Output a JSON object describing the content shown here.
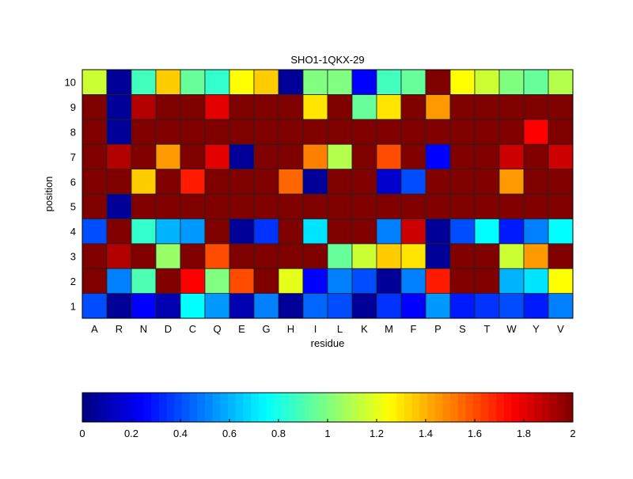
{
  "chart_data": {
    "type": "heatmap",
    "title": "SHO1-1QKX-29",
    "xlabel": "residue",
    "ylabel": "position",
    "x_categories": [
      "A",
      "R",
      "N",
      "D",
      "C",
      "Q",
      "E",
      "G",
      "H",
      "I",
      "L",
      "K",
      "M",
      "F",
      "P",
      "S",
      "T",
      "W",
      "Y",
      "V"
    ],
    "y_categories": [
      "1",
      "2",
      "3",
      "4",
      "5",
      "6",
      "7",
      "8",
      "9",
      "10"
    ],
    "colormap": "jet",
    "clim": [
      0,
      2
    ],
    "colorbar": {
      "placement": "bottom",
      "ticks": [
        "0",
        "0.2",
        "0.4",
        "0.6",
        "0.8",
        "1",
        "1.2",
        "1.4",
        "1.6",
        "1.8",
        "2"
      ]
    },
    "values_by_position": {
      "10": [
        1.15,
        0.05,
        0.88,
        1.35,
        0.95,
        0.85,
        1.25,
        1.35,
        0.05,
        1.0,
        1.0,
        0.25,
        0.88,
        0.95,
        2.0,
        1.25,
        1.15,
        1.0,
        0.95,
        1.1
      ],
      "9": [
        2,
        0.05,
        1.9,
        2,
        2,
        1.8,
        2,
        2,
        2,
        1.3,
        2,
        0.95,
        1.3,
        2,
        1.45,
        2,
        2,
        2,
        2,
        2
      ],
      "8": [
        2,
        0.05,
        2,
        2,
        2,
        2,
        2,
        2,
        2,
        2,
        2,
        2,
        2,
        2,
        2,
        2,
        2,
        2,
        1.75,
        2
      ],
      "7": [
        2,
        1.9,
        2,
        1.45,
        2,
        1.8,
        0.05,
        2,
        2,
        1.5,
        1.1,
        2,
        1.6,
        2,
        0.25,
        2,
        2,
        1.85,
        2,
        1.85
      ],
      "6": [
        2,
        2,
        1.35,
        2,
        1.7,
        2,
        2,
        2,
        1.55,
        0.05,
        2,
        2,
        0.15,
        0.4,
        2,
        2,
        2,
        1.45,
        2,
        2
      ],
      "5": [
        2,
        0.05,
        2,
        2,
        2,
        2,
        2,
        2,
        2,
        2,
        2,
        2,
        2,
        2,
        2,
        2,
        2,
        2,
        2,
        2
      ],
      "4": [
        0.4,
        2,
        0.85,
        0.6,
        0.55,
        2,
        0.05,
        0.35,
        2,
        0.7,
        2,
        2,
        0.5,
        1.85,
        0.05,
        0.4,
        0.75,
        0.3,
        0.5,
        0.75
      ],
      "3": [
        2,
        1.9,
        2,
        1.05,
        2,
        1.6,
        2,
        2,
        2,
        2,
        0.95,
        1.15,
        1.35,
        1.3,
        0.05,
        2,
        2,
        1.15,
        1.45,
        2
      ],
      "2": [
        2,
        0.5,
        0.9,
        2,
        1.75,
        1.0,
        1.6,
        2,
        1.2,
        0.25,
        0.5,
        0.4,
        0.05,
        0.5,
        1.7,
        2,
        2,
        0.6,
        0.7,
        1.25
      ],
      "1": [
        0.4,
        0.05,
        0.25,
        0.1,
        0.75,
        0.55,
        0.1,
        0.5,
        0.05,
        0.45,
        0.4,
        0.05,
        0.35,
        0.25,
        0.55,
        0.3,
        0.35,
        0.4,
        0.3,
        0.5
      ]
    }
  }
}
